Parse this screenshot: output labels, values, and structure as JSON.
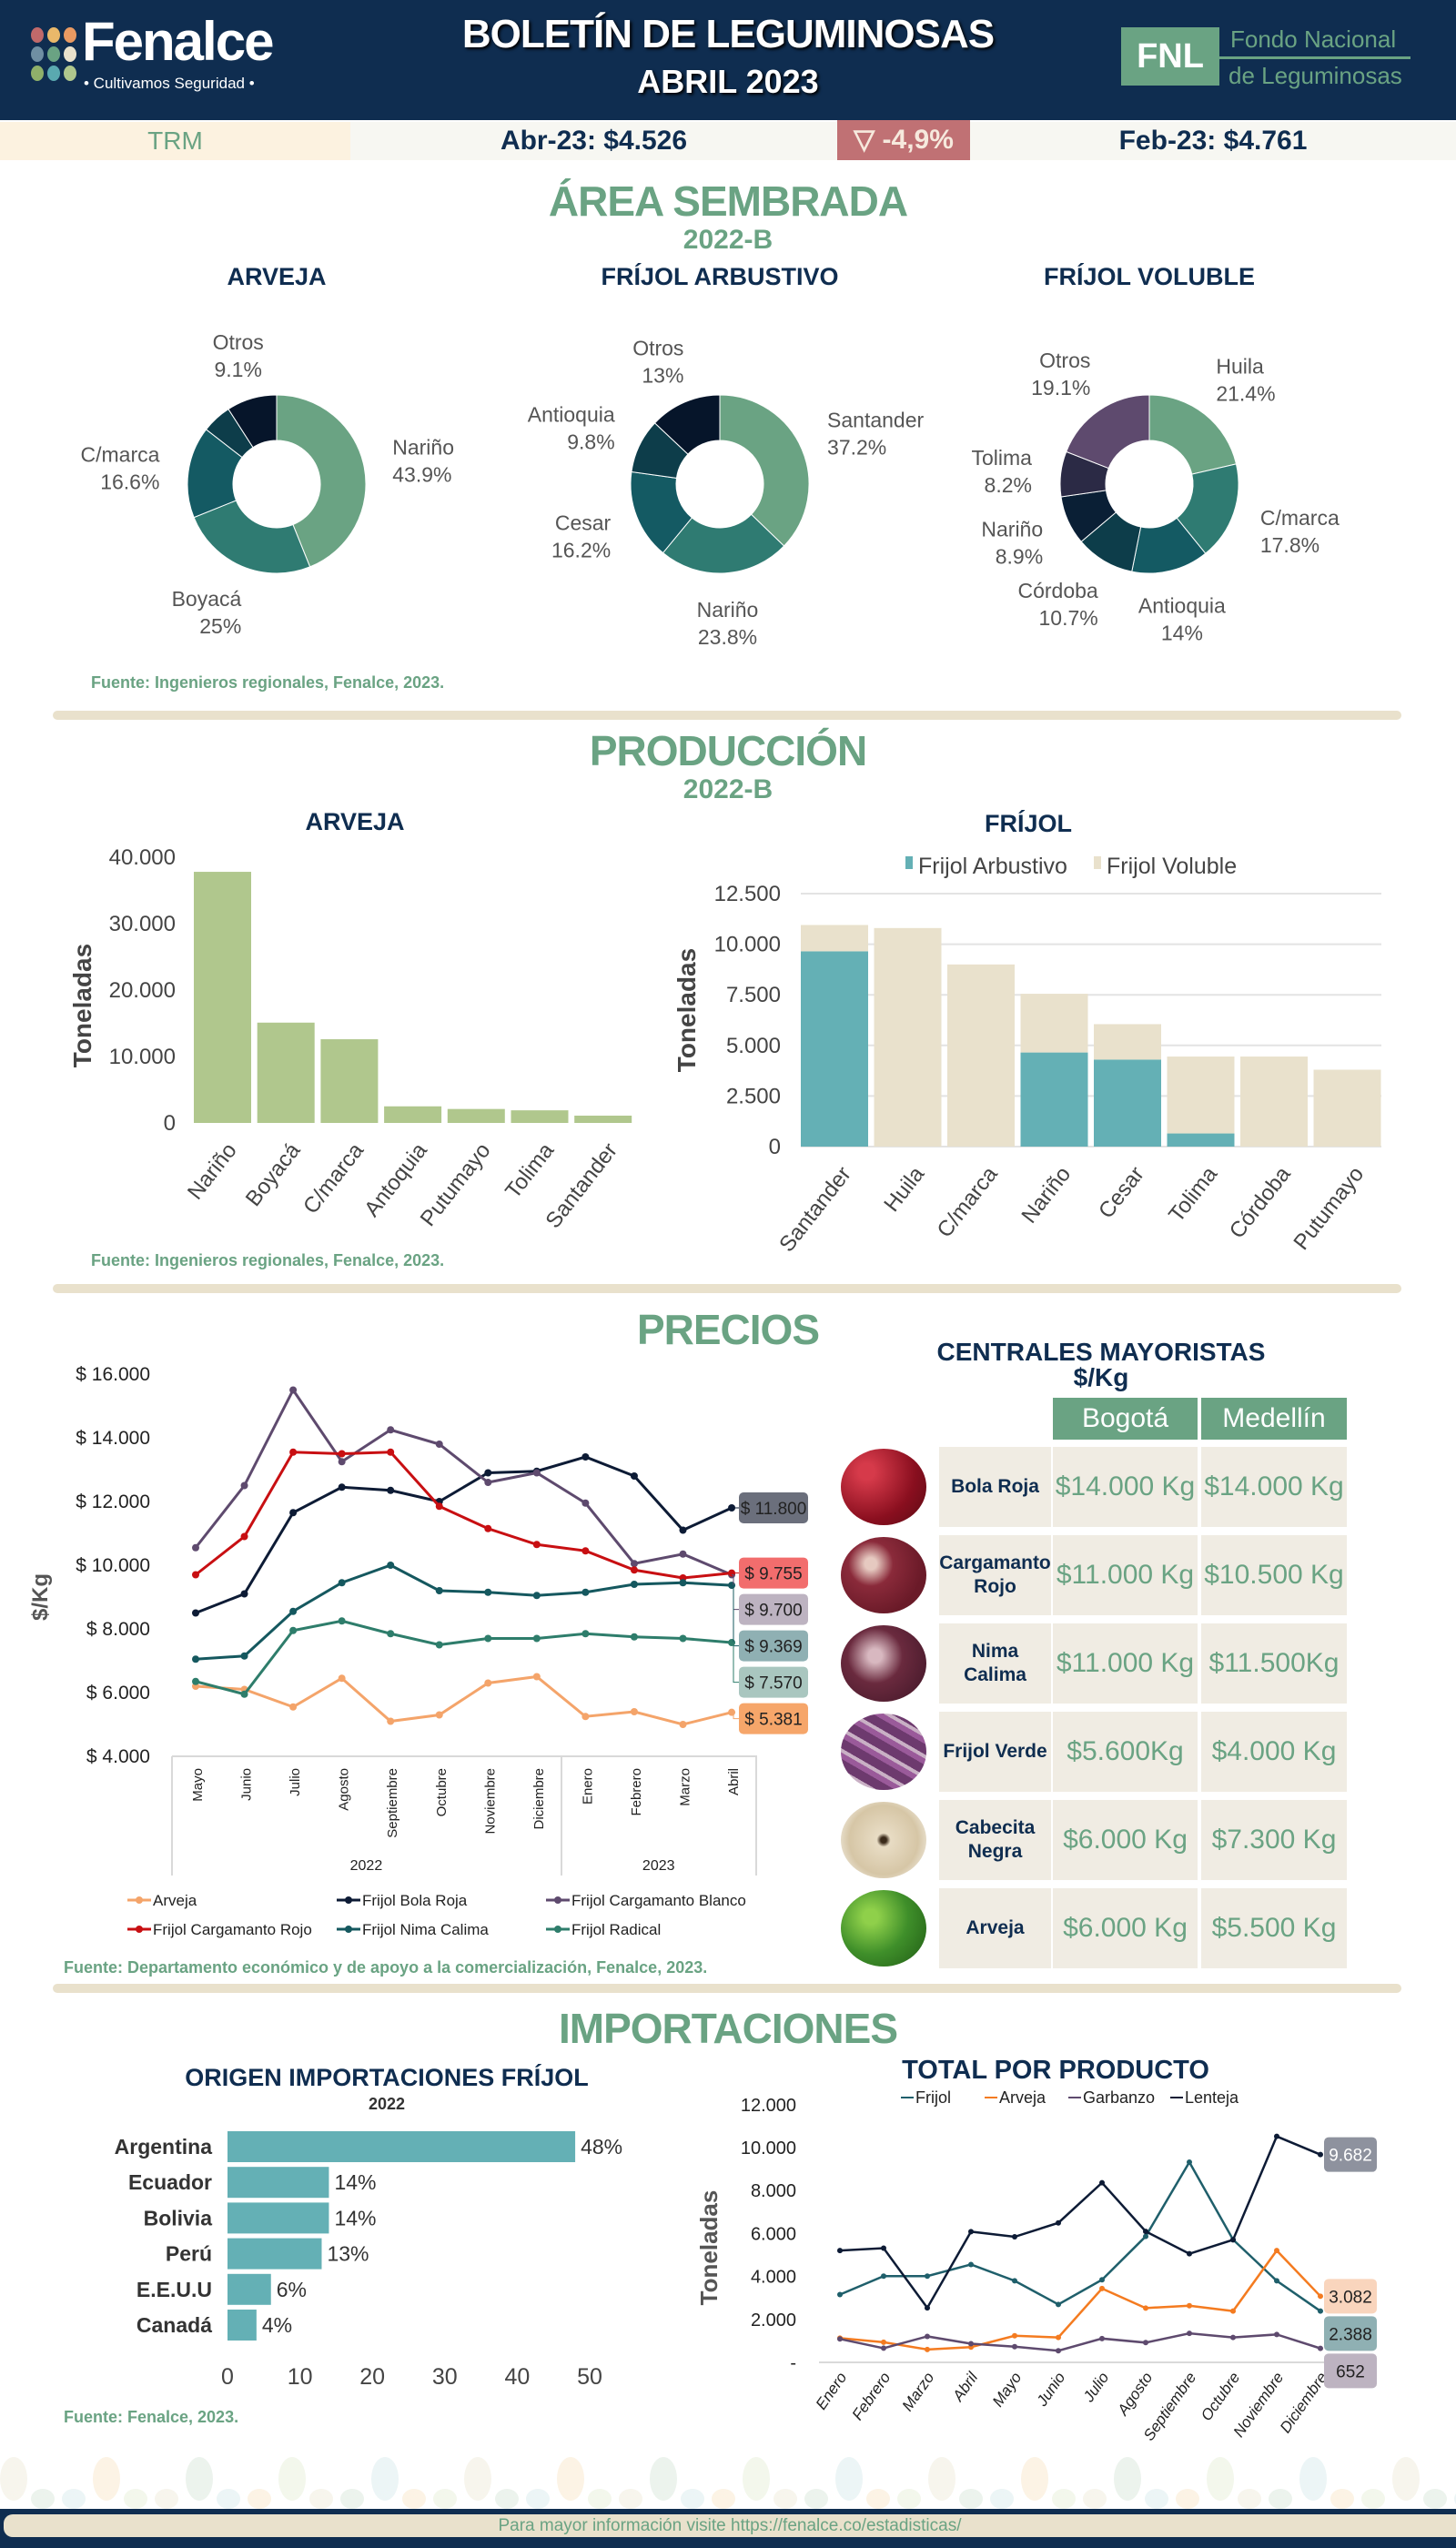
{
  "header": {
    "logo_name": "Fenalce",
    "logo_tagline": "• Cultivamos Seguridad •",
    "title": "BOLETÍN DE LEGUMINOSAS",
    "subtitle": "ABRIL 2023",
    "fnl_abbr": "FNL",
    "fnl_line1": "Fondo Nacional",
    "fnl_line2": "de Leguminosas"
  },
  "trm": {
    "label": "TRM",
    "current": "Abr-23: $4.526",
    "change": "▽ -4,9%",
    "previous": "Feb-23: $4.761"
  },
  "area": {
    "title": "ÁREA SEMBRADA",
    "period": "2022-B",
    "source": "Fuente: Ingenieros regionales, Fenalce, 2023."
  },
  "produccion": {
    "title": "PRODUCCIÓN",
    "period": "2022-B",
    "source": "Fuente: Ingenieros regionales, Fenalce, 2023."
  },
  "precios": {
    "title": "PRECIOS",
    "source": "Fuente: Departamento económico y de apoyo a la comercialización,  Fenalce, 2023.",
    "table": {
      "title": "CENTRALES MAYORISTAS",
      "unit": "$/Kg",
      "columns": [
        "Bogotá",
        "Medellín"
      ],
      "rows": [
        {
          "product": "Bola Roja",
          "bogota": "$14.000 Kg",
          "medellin": "$14.000 Kg",
          "image": "bola-roja-beans"
        },
        {
          "product": "Cargamanto Rojo",
          "bogota": "$11.000 Kg",
          "medellin": "$10.500 Kg",
          "image": "cargamanto-rojo-beans"
        },
        {
          "product": "Nima Calima",
          "bogota": "$11.000 Kg",
          "medellin": "$11.500Kg",
          "image": "nima-calima-beans"
        },
        {
          "product": "Frijol Verde",
          "bogota": "$5.600Kg",
          "medellin": "$4.000 Kg",
          "image": "frijol-verde-pods"
        },
        {
          "product": "Cabecita Negra",
          "bogota": "$6.000 Kg",
          "medellin": "$7.300 Kg",
          "image": "cabecita-negra-beans"
        },
        {
          "product": "Arveja",
          "bogota": "$6.000 Kg",
          "medellin": "$5.500 Kg",
          "image": "arveja-peas"
        }
      ]
    }
  },
  "importaciones": {
    "title": "IMPORTACIONES",
    "source": "Fuente: Fenalce, 2023."
  },
  "footer": {
    "text": "Para mayor información visite  https://fenalce.co/estadisticas/"
  },
  "chart_data": [
    {
      "type": "pie",
      "title": "ARVEJA",
      "slices": [
        {
          "label": "Nariño",
          "value": 43.9,
          "color": "#6aa383"
        },
        {
          "label": "Boyacá",
          "value": 25,
          "color": "#2f7b72"
        },
        {
          "label": "C/marca",
          "value": 16.6,
          "color": "#145a63"
        },
        {
          "label": "",
          "value": 5.4,
          "color": "#0d3d4a"
        },
        {
          "label": "Otros",
          "value": 9.1,
          "color": "#06152a"
        }
      ]
    },
    {
      "type": "pie",
      "title": "FRÍJOL ARBUSTIVO",
      "slices": [
        {
          "label": "Santander",
          "value": 37.2,
          "color": "#6aa383"
        },
        {
          "label": "Nariño",
          "value": 23.8,
          "color": "#2f7b72"
        },
        {
          "label": "Cesar",
          "value": 16.2,
          "color": "#145a63"
        },
        {
          "label": "Antioquia",
          "value": 9.8,
          "color": "#0d3d4a"
        },
        {
          "label": "Otros",
          "value": 13,
          "color": "#06152a"
        }
      ]
    },
    {
      "type": "pie",
      "title": "FRÍJOL VOLUBLE",
      "slices": [
        {
          "label": "Huila",
          "value": 21.4,
          "color": "#6aa383"
        },
        {
          "label": "C/marca",
          "value": 17.8,
          "color": "#2f7b72"
        },
        {
          "label": "Antioquia",
          "value": 14,
          "color": "#145a63"
        },
        {
          "label": "Córdoba",
          "value": 10.7,
          "color": "#0d3d4a"
        },
        {
          "label": "Nariño",
          "value": 8.9,
          "color": "#0a1f35"
        },
        {
          "label": "Tolima",
          "value": 8.2,
          "color": "#2b2a45"
        },
        {
          "label": "Otros",
          "value": 19.1,
          "color": "#5e4a6e"
        }
      ]
    },
    {
      "type": "bar",
      "title": "ARVEJA",
      "ylabel": "Toneladas",
      "ylim": [
        0,
        40000
      ],
      "yticks": [
        "0",
        "10.000",
        "20.000",
        "30.000",
        "40.000"
      ],
      "color": "#b0c78d",
      "categories": [
        "Nariño",
        "Boyacá",
        "C/marca",
        "Antoquia",
        "Putumayo",
        "Tolima",
        "Santander"
      ],
      "values": [
        37800,
        15100,
        12600,
        2500,
        2100,
        1900,
        1100
      ]
    },
    {
      "type": "bar",
      "stacked": true,
      "title": "FRÍJOL",
      "ylabel": "Toneladas",
      "ylim": [
        0,
        12500
      ],
      "yticks": [
        "0",
        "2.500",
        "5.000",
        "7.500",
        "10.000",
        "12.500"
      ],
      "grid": true,
      "legend": "top",
      "categories": [
        "Santander",
        "Huila",
        "C/marca",
        "Nariño",
        "Cesar",
        "Tolima",
        "Córdoba",
        "Putumayo"
      ],
      "series": [
        {
          "name": "Frijol Arbustivo",
          "color": "#64b0b5",
          "values": [
            9650,
            0,
            0,
            4650,
            4300,
            650,
            0,
            0
          ]
        },
        {
          "name": "Frijol Voluble",
          "color": "#e9e1cc",
          "values": [
            1300,
            10800,
            9000,
            2900,
            1750,
            3800,
            4450,
            3800
          ]
        }
      ]
    },
    {
      "type": "line",
      "ylabel": "$/Kg",
      "ylim": [
        4000,
        16000
      ],
      "yticks": [
        "$ 4.000",
        "$ 6.000",
        "$ 8.000",
        "$ 10.000",
        "$ 12.000",
        "$ 14.000",
        "$ 16.000"
      ],
      "x": [
        "Mayo",
        "Junio",
        "Julio",
        "Agosto",
        "Septiembre",
        "Octubre",
        "Noviembre",
        "Diciembre",
        "Enero",
        "Febrero",
        "Marzo",
        "Abril"
      ],
      "groups": [
        {
          "label": "2022",
          "count": 8
        },
        {
          "label": "2023",
          "count": 4
        }
      ],
      "legend": "bottom",
      "series": [
        {
          "name": "Arveja",
          "color": "#f4a46a",
          "label_bg": "#f6a66a",
          "end_label": "$ 5.381",
          "values": [
            6200,
            6100,
            5550,
            6450,
            5100,
            5300,
            6300,
            6500,
            5250,
            5400,
            5000,
            5381
          ]
        },
        {
          "name": "Frijol Bola Roja",
          "color": "#0d1b35",
          "label_bg": "#6b6f7c",
          "end_label": "$ 11.800",
          "values": [
            8500,
            9100,
            11650,
            12450,
            12350,
            12000,
            12900,
            12950,
            13400,
            12800,
            11100,
            11800
          ]
        },
        {
          "name": "Frijol Cargamanto Blanco",
          "color": "#5e4a6e",
          "label_bg": "#bdb3c1",
          "end_label": "$ 9.700",
          "values": [
            10550,
            12500,
            15500,
            13250,
            14250,
            13800,
            12600,
            12900,
            11950,
            10050,
            10350,
            9700
          ]
        },
        {
          "name": "Frijol Cargamanto Rojo",
          "color": "#c80f12",
          "label_bg": "#f26d6d",
          "end_label": "$ 9.755",
          "values": [
            9700,
            10900,
            13550,
            13500,
            13550,
            11850,
            11150,
            10650,
            10450,
            9850,
            9600,
            9755
          ]
        },
        {
          "name": "Frijol Nima Calima",
          "color": "#15585f",
          "label_bg": "#8fb0b3",
          "end_label": "$ 9.369",
          "values": [
            7050,
            7150,
            8550,
            9450,
            10000,
            9200,
            9150,
            9050,
            9150,
            9400,
            9450,
            9369
          ]
        },
        {
          "name": "Frijol Radical",
          "color": "#2e7d6b",
          "label_bg": "#a9c6bf",
          "end_label": "$ 7.570",
          "values": [
            6350,
            5950,
            7950,
            8250,
            7850,
            7500,
            7700,
            7700,
            7850,
            7750,
            7700,
            7570
          ]
        }
      ]
    },
    {
      "type": "bar",
      "orientation": "horizontal",
      "title": "ORIGEN IMPORTACIONES FRÍJOL",
      "subtitle": "2022",
      "xlim": [
        0,
        50
      ],
      "xticks": [
        "0",
        "10",
        "20",
        "30",
        "40",
        "50"
      ],
      "color": "#64b0b5",
      "categories": [
        "Argentina",
        "Ecuador",
        "Bolivia",
        "Perú",
        "E.E.U.U",
        "Canadá"
      ],
      "values": [
        48,
        14,
        14,
        13,
        6,
        4
      ]
    },
    {
      "type": "line",
      "title": "TOTAL POR PRODUCTO",
      "ylabel": "Toneladas",
      "ylim": [
        0,
        12000
      ],
      "yticks": [
        "-",
        "2.000",
        "4.000",
        "6.000",
        "8.000",
        "10.000",
        "12.000"
      ],
      "legend": "top",
      "x": [
        "Enero",
        "Febrero",
        "Marzo",
        "Abril",
        "Mayo",
        "Junio",
        "Julio",
        "Agosto",
        "Septiembre",
        "Octubre",
        "Noviembre",
        "Diciembre"
      ],
      "series": [
        {
          "name": "Frijol",
          "color": "#1f5f6b",
          "label_bg": "#8fb0b3",
          "end_label": "2.388",
          "values": [
            3160,
            4020,
            4020,
            4560,
            3800,
            2700,
            3850,
            5870,
            9330,
            5720,
            3800,
            2388
          ]
        },
        {
          "name": "Arveja",
          "color": "#f47b20",
          "label_bg": "#f9d5bd",
          "end_label": "3.082",
          "values": [
            1130,
            940,
            600,
            710,
            1240,
            1160,
            3440,
            2530,
            2640,
            2390,
            5210,
            3082
          ]
        },
        {
          "name": "Garbanzo",
          "color": "#5e4a6e",
          "label_bg": "#bdb3c1",
          "end_label": "652",
          "values": [
            1090,
            660,
            1210,
            870,
            730,
            540,
            1110,
            920,
            1350,
            1160,
            1300,
            652
          ]
        },
        {
          "name": "Lenteja",
          "color": "#0d1b35",
          "label_bg": "#8e929e",
          "end_label": "9.682",
          "values": [
            5210,
            5320,
            2540,
            6090,
            5850,
            6500,
            8370,
            6100,
            5060,
            5710,
            10530,
            9682
          ]
        }
      ]
    }
  ]
}
